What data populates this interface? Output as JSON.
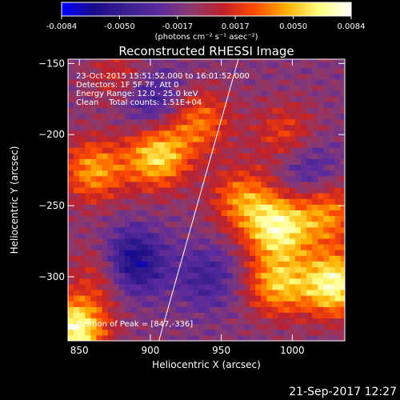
{
  "chart_data": {
    "type": "heatmap",
    "title": "Reconstructed RHESSI Image",
    "xlabel": "Heliocentric X (arcsec)",
    "ylabel": "Heliocentric Y (arcsec)",
    "xlim": [
      842,
      1037
    ],
    "ylim": [
      -345,
      -147
    ],
    "x_ticks": [
      850,
      900,
      950,
      1000
    ],
    "y_ticks": [
      -150,
      -200,
      -250,
      -300
    ],
    "colorbar": {
      "min": -0.0084,
      "max": 0.0084,
      "ticks": [
        "-0.0084",
        "-0.0050",
        "-0.0017",
        "0.0017",
        "0.0050",
        "0.0084"
      ],
      "units_label": "(photons cm⁻² s⁻¹ asec⁻²)",
      "colormap": [
        "#0000ff",
        "#1a0b8a",
        "#3a1f8f",
        "#5a2a9e",
        "#8a3a70",
        "#c0202a",
        "#ff4a00",
        "#ffb000",
        "#ffff80",
        "#ffffff"
      ]
    },
    "annotations": [
      "23-Oct-2015 15:51:52.000 to 16:01:52.000",
      "Detectors: 1F 5F 7F, Att 0",
      "Energy Range: 12.0 - 25.0 keV",
      "Clean    Total counts: 1.51E+04"
    ],
    "peak_label": "Position of Peak = [847,-336]",
    "peak": [
      847,
      -336
    ],
    "limb_line": [
      [
        906,
        -345
      ],
      [
        962,
        -147
      ]
    ],
    "features": [
      {
        "x": 860,
        "y": -225,
        "value": 0.0055
      },
      {
        "x": 905,
        "y": -215,
        "value": 0.007
      },
      {
        "x": 935,
        "y": -190,
        "value": 0.0045
      },
      {
        "x": 965,
        "y": -245,
        "value": 0.0048
      },
      {
        "x": 990,
        "y": -265,
        "value": 0.0075
      },
      {
        "x": 990,
        "y": -305,
        "value": 0.006
      },
      {
        "x": 1030,
        "y": -305,
        "value": 0.0082
      },
      {
        "x": 1025,
        "y": -255,
        "value": 0.005
      },
      {
        "x": 870,
        "y": -295,
        "value": 0.0045
      },
      {
        "x": 847,
        "y": -336,
        "value": 0.0084
      },
      {
        "x": 880,
        "y": -160,
        "value": 0.003
      },
      {
        "x": 995,
        "y": -200,
        "value": 0.0035
      },
      {
        "x": 885,
        "y": -290,
        "value": -0.0075
      },
      {
        "x": 900,
        "y": -175,
        "value": -0.004
      },
      {
        "x": 940,
        "y": -300,
        "value": -0.003
      },
      {
        "x": 1010,
        "y": -225,
        "value": -0.003
      }
    ]
  },
  "timestamp": "21-Sep-2017 12:27"
}
